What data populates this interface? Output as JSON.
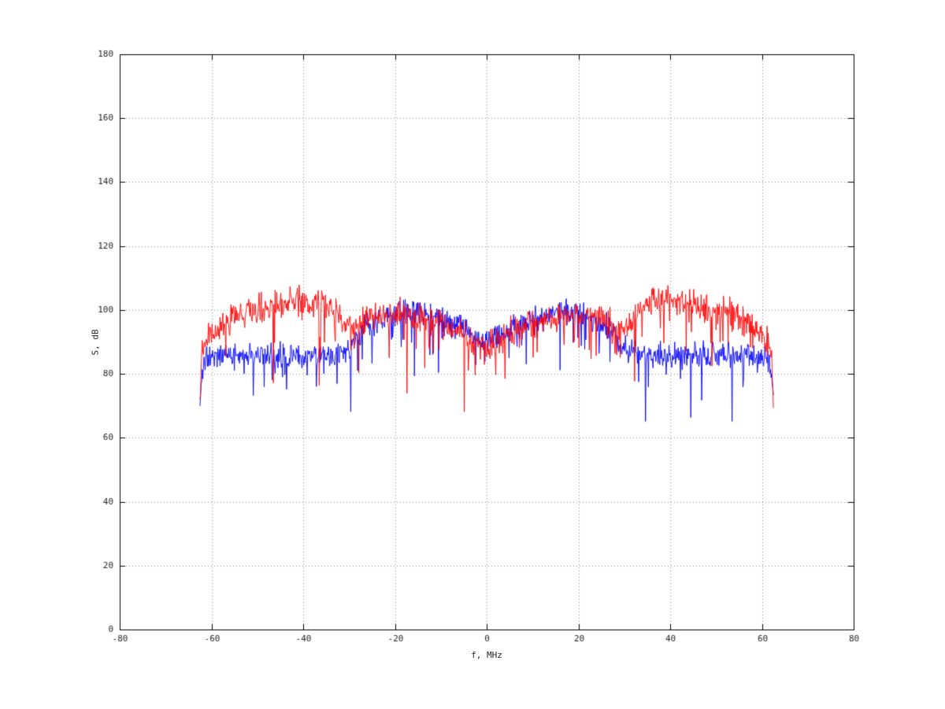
{
  "figure": {
    "background": "#ffffff",
    "border_color": "#000000",
    "grid_color": "#8c8c8c",
    "tick_label_color": "#262626"
  },
  "chart_data": {
    "type": "line",
    "title": "",
    "xlabel": "f, MHz",
    "ylabel": "S, dB",
    "xlim": [
      -80,
      80
    ],
    "ylim": [
      0,
      180
    ],
    "xticks": [
      -80,
      -60,
      -40,
      -20,
      0,
      20,
      40,
      60,
      80
    ],
    "yticks": [
      0,
      20,
      40,
      60,
      80,
      100,
      120,
      140,
      160,
      180
    ],
    "grid": true,
    "grid_style": "dotted",
    "legend": "none",
    "series": [
      {
        "name": "blue-trace",
        "color": "#0000ff",
        "f_min": -62.5,
        "f_max": 62.5,
        "points_per_mhz": 8,
        "seed": 20177,
        "noise": {
          "up": 5.0,
          "spike_prob": 0.09,
          "spike_depth": 11,
          "deep_spike_prob": 0.012,
          "deep_spike_extra": 8
        },
        "envelope": [
          [
            -62.5,
            72
          ],
          [
            -62.2,
            80
          ],
          [
            -61.5,
            84
          ],
          [
            -60,
            86
          ],
          [
            -55,
            86
          ],
          [
            -50,
            86
          ],
          [
            -45,
            86
          ],
          [
            -40,
            86
          ],
          [
            -35,
            86
          ],
          [
            -31,
            87
          ],
          [
            -29,
            89
          ],
          [
            -27.5,
            93
          ],
          [
            -26,
            95
          ],
          [
            -24,
            96
          ],
          [
            -21,
            98
          ],
          [
            -18,
            99
          ],
          [
            -15,
            99
          ],
          [
            -12,
            98
          ],
          [
            -9,
            96
          ],
          [
            -6,
            95
          ],
          [
            -3,
            92
          ],
          [
            0,
            90
          ],
          [
            3,
            92
          ],
          [
            6,
            95
          ],
          [
            9,
            96
          ],
          [
            12,
            98
          ],
          [
            15,
            99
          ],
          [
            18,
            99
          ],
          [
            21,
            98
          ],
          [
            24,
            96
          ],
          [
            26,
            95
          ],
          [
            27.5,
            93
          ],
          [
            29,
            89
          ],
          [
            31,
            87
          ],
          [
            35,
            86
          ],
          [
            40,
            86
          ],
          [
            45,
            86
          ],
          [
            50,
            86
          ],
          [
            55,
            86
          ],
          [
            60,
            86
          ],
          [
            61.5,
            84
          ],
          [
            -0.0,
            90
          ],
          [
            62.2,
            80
          ],
          [
            62.5,
            72
          ]
        ]
      },
      {
        "name": "red-trace",
        "color": "#ff0000",
        "f_min": -62.5,
        "f_max": 62.5,
        "points_per_mhz": 8,
        "seed": 90051,
        "noise": {
          "up": 5.5,
          "spike_prob": 0.09,
          "spike_depth": 12,
          "deep_spike_prob": 0.013,
          "deep_spike_extra": 13
        },
        "envelope": [
          [
            -62.5,
            70
          ],
          [
            -62.2,
            85
          ],
          [
            -61.5,
            90
          ],
          [
            -60,
            93
          ],
          [
            -58,
            95
          ],
          [
            -55,
            98
          ],
          [
            -52,
            100
          ],
          [
            -48,
            101
          ],
          [
            -45,
            102
          ],
          [
            -42,
            103
          ],
          [
            -38,
            103
          ],
          [
            -35,
            102
          ],
          [
            -33,
            100
          ],
          [
            -31,
            96
          ],
          [
            -29.5,
            94
          ],
          [
            -28,
            95
          ],
          [
            -26,
            97
          ],
          [
            -23,
            98
          ],
          [
            -20,
            99
          ],
          [
            -17,
            98
          ],
          [
            -14,
            97
          ],
          [
            -11,
            96
          ],
          [
            -8,
            95
          ],
          [
            -5,
            93
          ],
          [
            -2,
            90
          ],
          [
            0,
            88
          ],
          [
            2,
            90
          ],
          [
            5,
            93
          ],
          [
            8,
            95
          ],
          [
            11,
            96
          ],
          [
            14,
            97
          ],
          [
            17,
            98
          ],
          [
            20,
            99
          ],
          [
            23,
            98
          ],
          [
            26,
            97
          ],
          [
            28,
            95
          ],
          [
            29.5,
            94
          ],
          [
            31,
            96
          ],
          [
            33,
            100
          ],
          [
            35,
            102
          ],
          [
            38,
            103
          ],
          [
            42,
            103
          ],
          [
            45,
            102
          ],
          [
            48,
            101
          ],
          [
            52,
            100
          ],
          [
            55,
            98
          ],
          [
            58,
            95
          ],
          [
            60,
            93
          ],
          [
            61.5,
            90
          ],
          [
            62.2,
            85
          ],
          [
            62.5,
            70
          ]
        ]
      }
    ]
  }
}
